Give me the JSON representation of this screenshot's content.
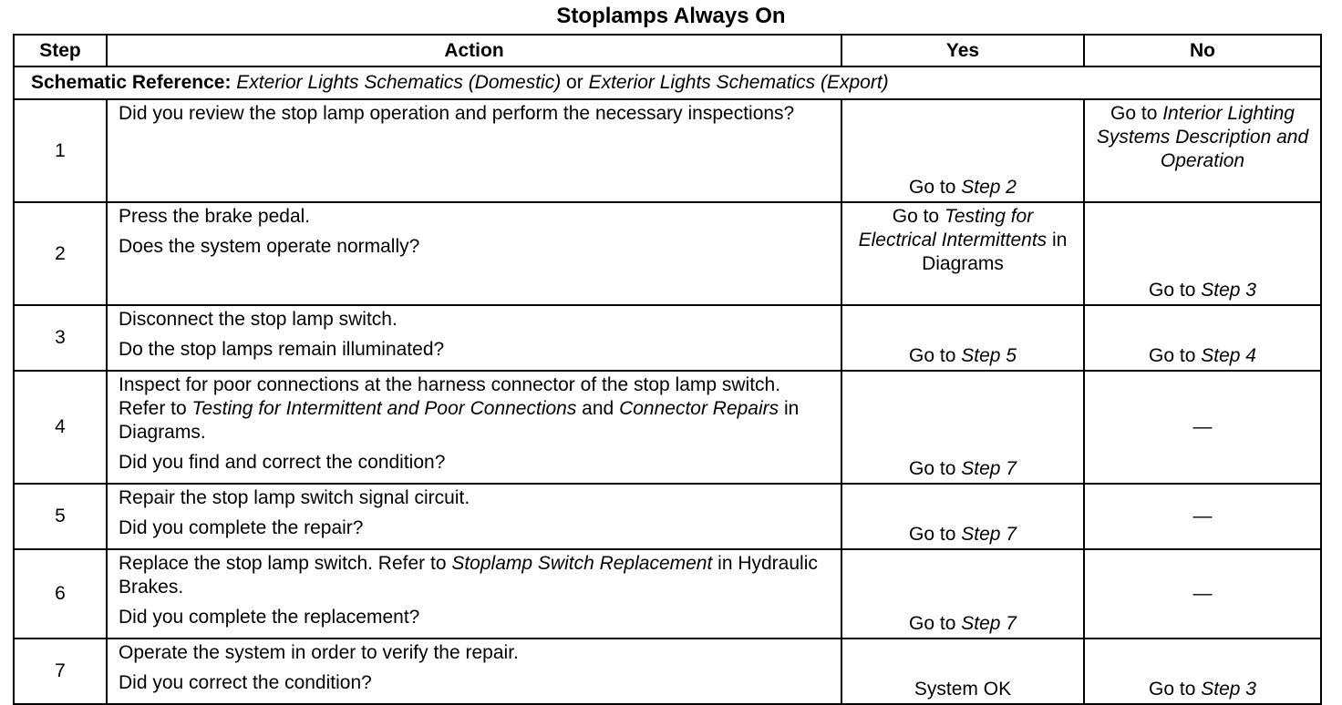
{
  "title": "Stoplamps Always On",
  "table": {
    "header": [
      "Step",
      "Action",
      "Yes",
      "No"
    ],
    "reference": {
      "label": "Schematic Reference:",
      "runs": [
        {
          "text": "Exterior Lights Schematics (Domestic)",
          "em": true
        },
        " or ",
        {
          "text": "Exterior Lights Schematics (Export)",
          "em": true
        }
      ]
    },
    "rows": [
      {
        "step": "1",
        "action": [
          [
            "Did you review the stop lamp operation and perform the necessary inspections?"
          ]
        ],
        "yes": [
          "Go to ",
          {
            "text": "Step 2",
            "em": true
          }
        ],
        "no": [
          "Go to ",
          {
            "text": "Interior Lighting Systems Description and Operation",
            "em": true
          }
        ]
      },
      {
        "step": "2",
        "action": [
          [
            "Press the brake pedal."
          ],
          [
            "Does the system operate normally?"
          ]
        ],
        "yes": [
          "Go to ",
          {
            "text": "Testing for Electrical Intermittents",
            "em": true
          },
          " in Diagrams"
        ],
        "no": [
          "Go to ",
          {
            "text": "Step 3",
            "em": true
          }
        ]
      },
      {
        "step": "3",
        "action": [
          [
            "Disconnect the stop lamp switch."
          ],
          [
            "Do the stop lamps remain illuminated?"
          ]
        ],
        "yes": [
          "Go to ",
          {
            "text": "Step 5",
            "em": true
          }
        ],
        "no": [
          "Go to ",
          {
            "text": "Step 4",
            "em": true
          }
        ]
      },
      {
        "step": "4",
        "action": [
          [
            "Inspect for poor connections at the harness connector of the stop lamp switch. Refer to ",
            {
              "text": "Testing for Intermittent and Poor Connections",
              "em": true
            },
            " and ",
            {
              "text": "Connector Repairs",
              "em": true
            },
            " in Diagrams."
          ],
          [
            "Did you find and correct the condition?"
          ]
        ],
        "yes": [
          "Go to ",
          {
            "text": "Step 7",
            "em": true
          }
        ],
        "no": [
          "—"
        ]
      },
      {
        "step": "5",
        "action": [
          [
            "Repair the stop lamp switch signal circuit."
          ],
          [
            "Did you complete the repair?"
          ]
        ],
        "yes": [
          "Go to ",
          {
            "text": "Step 7",
            "em": true
          }
        ],
        "no": [
          "—"
        ]
      },
      {
        "step": "6",
        "action": [
          [
            "Replace the stop lamp switch. Refer to ",
            {
              "text": "Stoplamp Switch Replacement",
              "em": true
            },
            " in Hydraulic Brakes."
          ],
          [
            "Did you complete the replacement?"
          ]
        ],
        "yes": [
          "Go to ",
          {
            "text": "Step 7",
            "em": true
          }
        ],
        "no": [
          "—"
        ]
      },
      {
        "step": "7",
        "action": [
          [
            "Operate the system in order to verify the repair."
          ],
          [
            "Did you correct the condition?"
          ]
        ],
        "yes": [
          "System OK"
        ],
        "no": [
          "Go to ",
          {
            "text": "Step 3",
            "em": true
          }
        ]
      }
    ]
  }
}
